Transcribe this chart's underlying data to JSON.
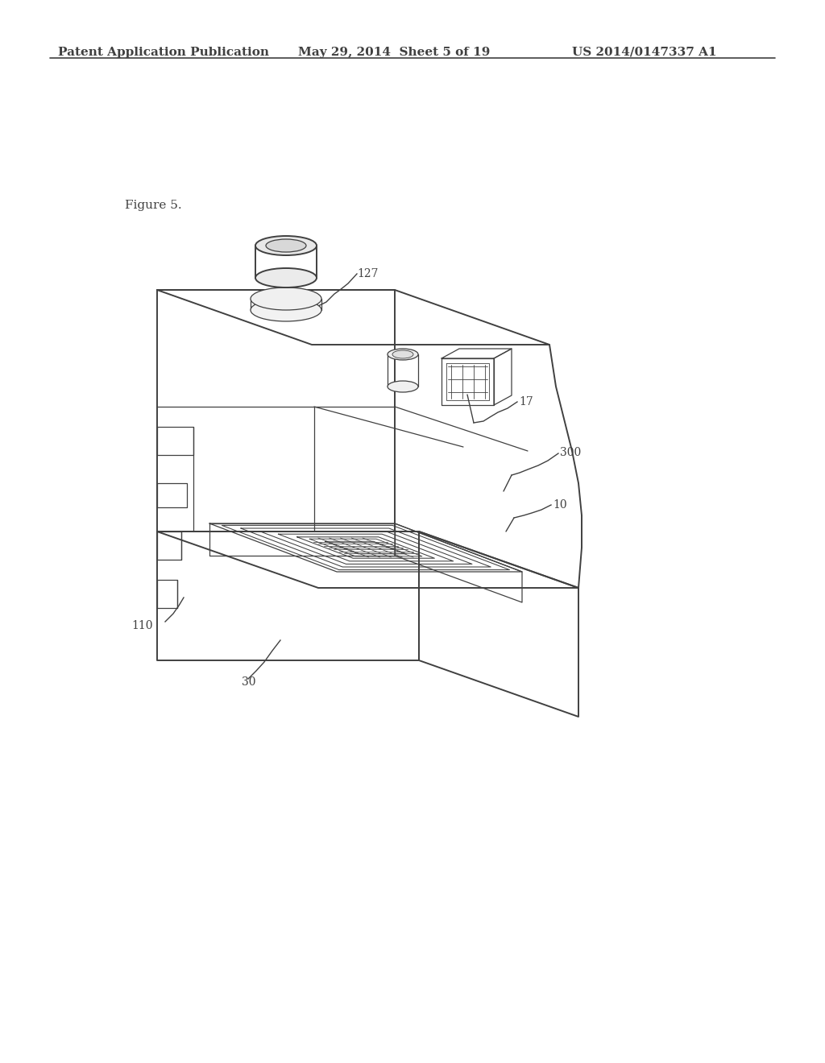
{
  "background_color": "#ffffff",
  "line_color": "#404040",
  "lw_main": 1.4,
  "lw_thin": 0.9,
  "lw_detail": 0.65,
  "header_left": "Patent Application Publication",
  "header_center": "May 29, 2014  Sheet 5 of 19",
  "header_right": "US 2014/0147337 A1",
  "figure_label": "Figure 5.",
  "fig_width": 10.24,
  "fig_height": 13.2,
  "dpi": 100
}
